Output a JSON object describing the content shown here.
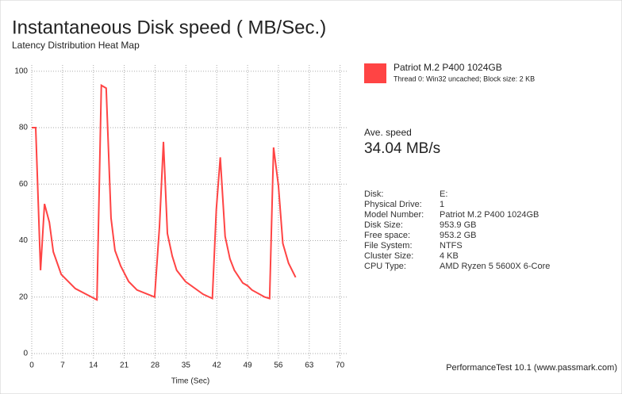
{
  "chart_data": {
    "type": "line",
    "title": "Instantaneous Disk speed ( MB/Sec.)",
    "subtitle": "Latency Distribution Heat Map",
    "x_label": "Time (Sec)",
    "x": [
      0,
      0.9,
      2,
      2.9,
      4,
      4.9,
      6.7,
      9.9,
      14.8,
      15.8,
      16.9,
      18,
      18.9,
      20.2,
      22,
      23.9,
      27.9,
      29,
      29.9,
      30.8,
      31.9,
      32.9,
      34.9,
      38.9,
      41,
      41.9,
      42.8,
      43.9,
      45,
      46,
      47.9,
      49,
      50,
      52.9,
      54,
      54.9,
      56,
      57,
      58.3,
      59.9
    ],
    "series": [
      {
        "name": "Patriot M.2 P400 1024GB",
        "color": "#ff4444",
        "values": [
          80,
          80,
          29.5,
          53,
          46.5,
          36,
          28,
          23,
          19,
          95,
          94,
          48,
          36.5,
          31,
          25.5,
          22.5,
          20,
          45,
          75,
          42.5,
          34.5,
          29.5,
          25.5,
          21,
          19.5,
          51,
          69.5,
          41.5,
          33.5,
          29.5,
          25,
          24,
          22.5,
          20,
          19.5,
          73,
          59.5,
          39,
          32,
          27
        ]
      }
    ],
    "xlim": [
      0,
      71.5
    ],
    "xticks": [
      0,
      7,
      14,
      21,
      28,
      35,
      42,
      49,
      56,
      63,
      70
    ],
    "ylim": [
      -1.7,
      102.2
    ],
    "yticks": [
      0,
      20,
      40,
      60,
      80,
      100
    ],
    "grid": true
  },
  "panel": {
    "legend_note": "Thread 0: Win32 uncached; Block size: 2 KB",
    "avg_label": "Ave. speed",
    "avg_value": "34.04 MB/s",
    "info": [
      [
        "Disk:",
        "E:"
      ],
      [
        "Physical Drive:",
        "1"
      ],
      [
        "Model Number:",
        "Patriot M.2 P400 1024GB"
      ],
      [
        "Disk Size:",
        "953.9 GB"
      ],
      [
        "Free space:",
        "953.2 GB"
      ],
      [
        "File System:",
        "NTFS"
      ],
      [
        "Cluster Size:",
        "4 KB"
      ],
      [
        "CPU Type:",
        "AMD Ryzen 5 5600X 6-Core"
      ]
    ],
    "footer": "PerformanceTest 10.1 (www.passmark.com)"
  }
}
